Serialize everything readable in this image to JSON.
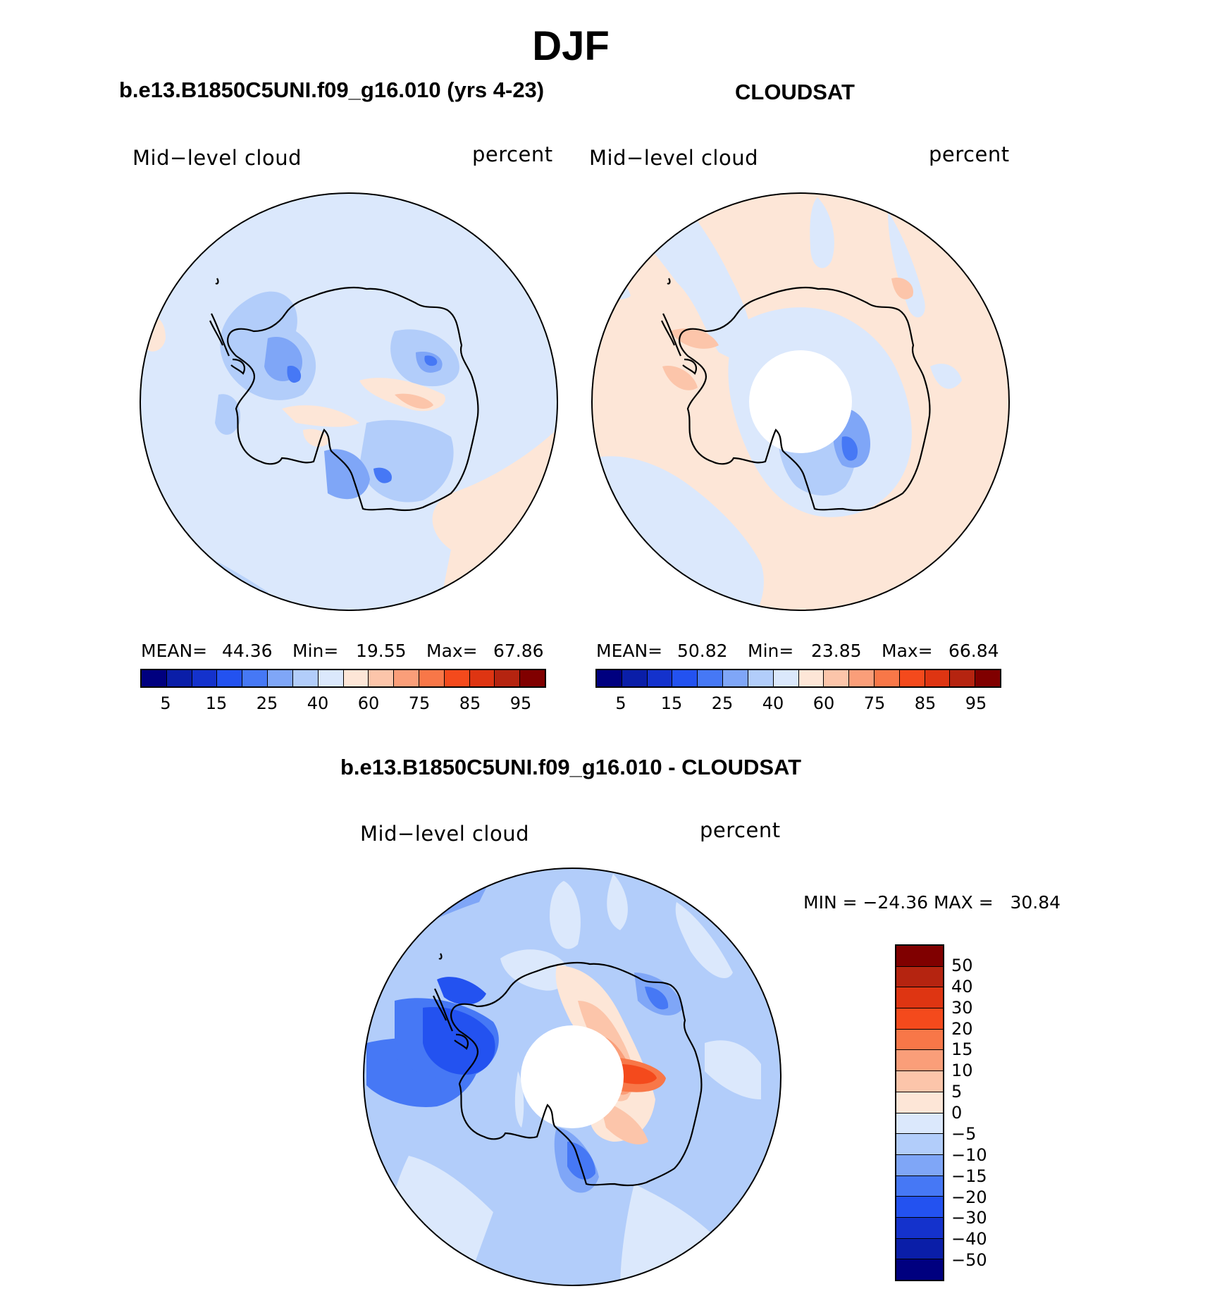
{
  "title": "DJF",
  "panels": [
    {
      "id": "model",
      "header": "b.e13.B1850C5UNI.f09_g16.010 (yrs 4-23)",
      "variable": "Mid−level cloud",
      "units": "percent",
      "mean_label": "MEAN=",
      "mean": "44.36",
      "min_label": "Min=",
      "min": "19.55",
      "max_label": "Max=",
      "max": "67.86"
    },
    {
      "id": "obs",
      "header": "CLOUDSAT",
      "variable": "Mid−level cloud",
      "units": "percent",
      "mean_label": "MEAN=",
      "mean": "50.82",
      "min_label": "Min=",
      "min": "23.85",
      "max_label": "Max=",
      "max": "66.84"
    }
  ],
  "abs_colorbar": {
    "colors": [
      "#00007f",
      "#0a1ea8",
      "#1432cc",
      "#2352f0",
      "#4678f5",
      "#7fa6f7",
      "#b2cdfa",
      "#dbe8fc",
      "#fde6d7",
      "#fcc5aa",
      "#fa9e79",
      "#f87748",
      "#f44a1c",
      "#de3512",
      "#b52410",
      "#800000"
    ],
    "labels": [
      "5",
      "15",
      "25",
      "40",
      "60",
      "75",
      "85",
      "95"
    ]
  },
  "diff_panel": {
    "header": "b.e13.B1850C5UNI.f09_g16.010 - CLOUDSAT",
    "variable": "Mid−level cloud",
    "units": "percent",
    "minmax_text": "MIN = −24.36 MAX =   30.84"
  },
  "diff_colorbar": {
    "colors_top_to_bottom": [
      "#800000",
      "#b52410",
      "#de3512",
      "#f44a1c",
      "#f87748",
      "#fa9e79",
      "#fcc5aa",
      "#fde6d7",
      "#dbe8fc",
      "#b2cdfa",
      "#7fa6f7",
      "#4678f5",
      "#2352f0",
      "#1432cc",
      "#0a1ea8",
      "#00007f"
    ],
    "labels_top_to_bottom": [
      "50",
      "40",
      "30",
      "20",
      "15",
      "10",
      "5",
      "0",
      "−5",
      "−10",
      "−15",
      "−20",
      "−30",
      "−40",
      "−50"
    ]
  }
}
